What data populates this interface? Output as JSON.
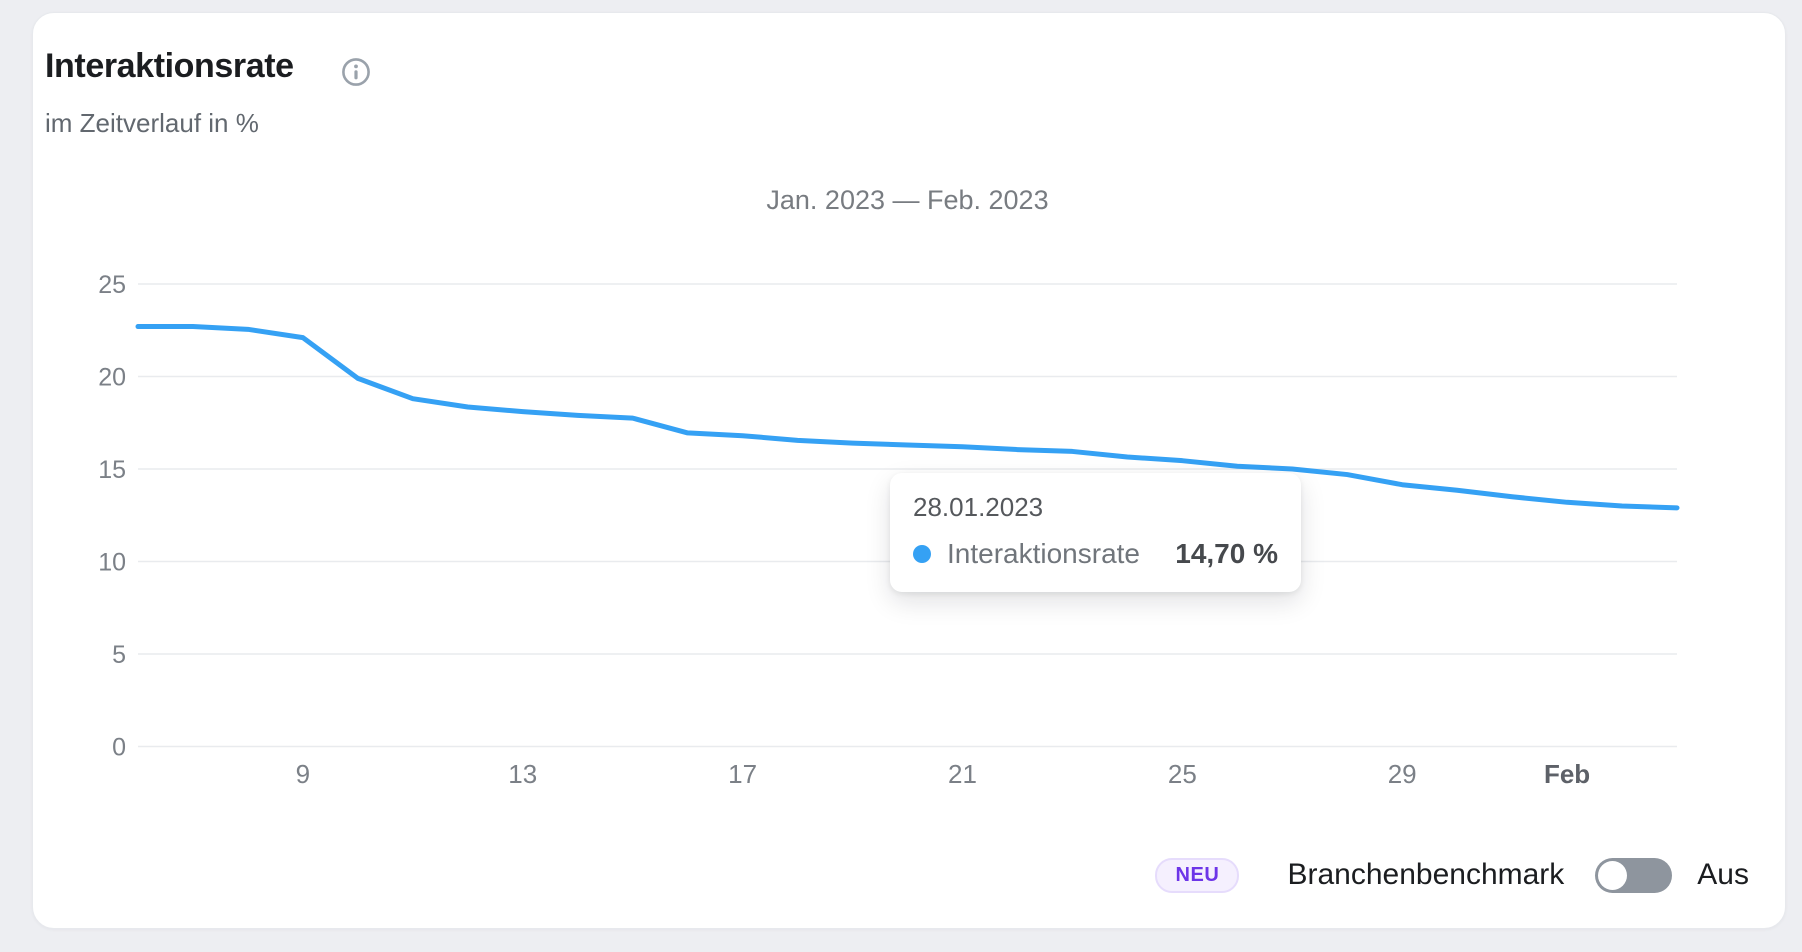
{
  "card": {
    "title": "Interaktionsrate",
    "subtitle": "im Zeitverlauf in %"
  },
  "chart_data": {
    "type": "line",
    "title": "Jan. 2023 — Feb. 2023",
    "x_axis": {
      "ticks": [
        {
          "index": 3,
          "label": "9",
          "bold": false
        },
        {
          "index": 7,
          "label": "13",
          "bold": false
        },
        {
          "index": 11,
          "label": "17",
          "bold": false
        },
        {
          "index": 15,
          "label": "21",
          "bold": false
        },
        {
          "index": 19,
          "label": "25",
          "bold": false
        },
        {
          "index": 23,
          "label": "29",
          "bold": false
        },
        {
          "index": 26,
          "label": "Feb",
          "bold": true
        }
      ]
    },
    "y_axis": {
      "ticks": [
        25,
        20,
        15,
        10,
        5,
        0
      ],
      "max": 25,
      "unit": "%"
    },
    "grid": true,
    "legend_position": "none",
    "series": [
      {
        "name": "Interaktionsrate",
        "color": "#35A1F4",
        "values": [
          22.7,
          22.7,
          22.55,
          22.1,
          19.9,
          18.8,
          18.35,
          18.1,
          17.9,
          17.75,
          16.95,
          16.8,
          16.55,
          16.4,
          16.3,
          16.2,
          16.05,
          15.95,
          15.65,
          15.45,
          15.15,
          15.0,
          14.7,
          14.15,
          13.85,
          13.5,
          13.2,
          13.0,
          12.9
        ]
      }
    ]
  },
  "tooltip": {
    "date": "28.01.2023",
    "series_label": "Interaktionsrate",
    "value": "14,70 %",
    "dot_color": "#35A1F4"
  },
  "footer": {
    "badge": "NEU",
    "label": "Branchenbenchmark",
    "toggle_state_label": "Aus",
    "toggle_on": false
  },
  "colors": {
    "line": "#35A1F4",
    "grid": "#e9ebee",
    "badge_text": "#6d35e8",
    "badge_bg": "#f5f0fe",
    "toggle_track_off": "#8e959e",
    "page_bg": "#edeef2"
  }
}
